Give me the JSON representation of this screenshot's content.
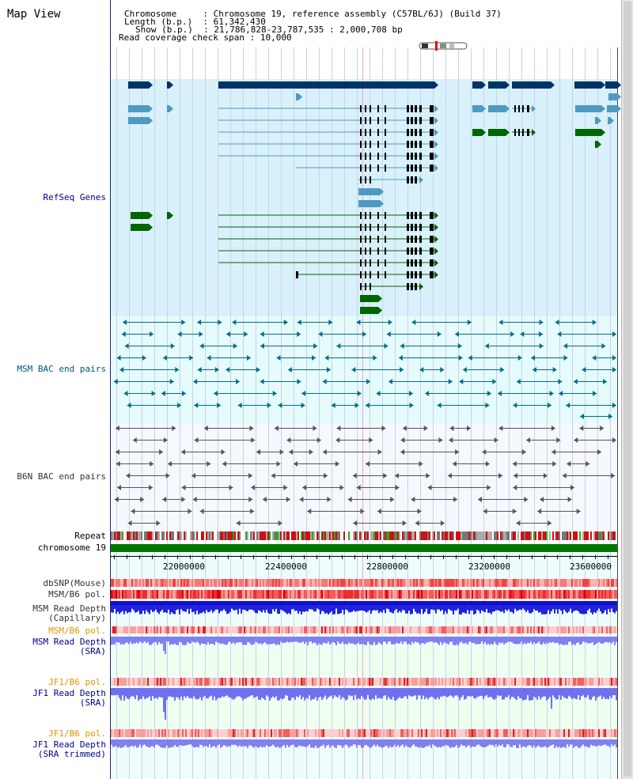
{
  "title": "Map View",
  "header": {
    "chromosome_key": "Chromosome",
    "chromosome_val": "Chromosome 19, reference assembly (C57BL/6J) (Build 37)",
    "length_key": "Length (b.p.)",
    "length_val": "61,342,430",
    "show_key": "Show (b.p.)",
    "show_val": "21,786,828-23,787,535 : 2,000,708 bp",
    "span_key": "Read coverage check span",
    "span_val": "10,000"
  },
  "tracks": {
    "refseq": "RefSeq Genes",
    "msm_bac": "MSM BAC end pairs",
    "b6n_bac": "B6N BAC end pairs",
    "repeat": "Repeat",
    "chrom": "chromosome 19",
    "dbsnp": "dbSNP(Mouse)",
    "msm_pol": "MSM/B6 pol.",
    "msm_depth_cap1": "MSM Read Depth",
    "msm_depth_cap2": "(Capillary)",
    "msm_pol2": "MSM/B6 pol.",
    "msm_sra1": "MSM Read Depth",
    "msm_sra2": "(SRA)",
    "jf1_pol": "JF1/B6 pol.",
    "jf1_sra1": "JF1 Read Depth",
    "jf1_sra2": "(SRA)",
    "jf1_pol2": "JF1/B6 pol.",
    "jf1_trim1": "JF1 Read Depth",
    "jf1_trim2": "(SRA trimmed)"
  },
  "axis": {
    "ticks": [
      "22000000",
      "22400000",
      "22800000",
      "23200000",
      "23600000"
    ]
  },
  "colors": {
    "refseq_bg": "#d9f1fb",
    "bac_bg": "#e6fbfb",
    "b6n_bg": "#f5f8fc",
    "dark_gene": "#003366",
    "mid_gene": "#4f9ac0",
    "green_gene": "#006600",
    "chrom": "#007700",
    "teal": "#006e8c"
  }
}
